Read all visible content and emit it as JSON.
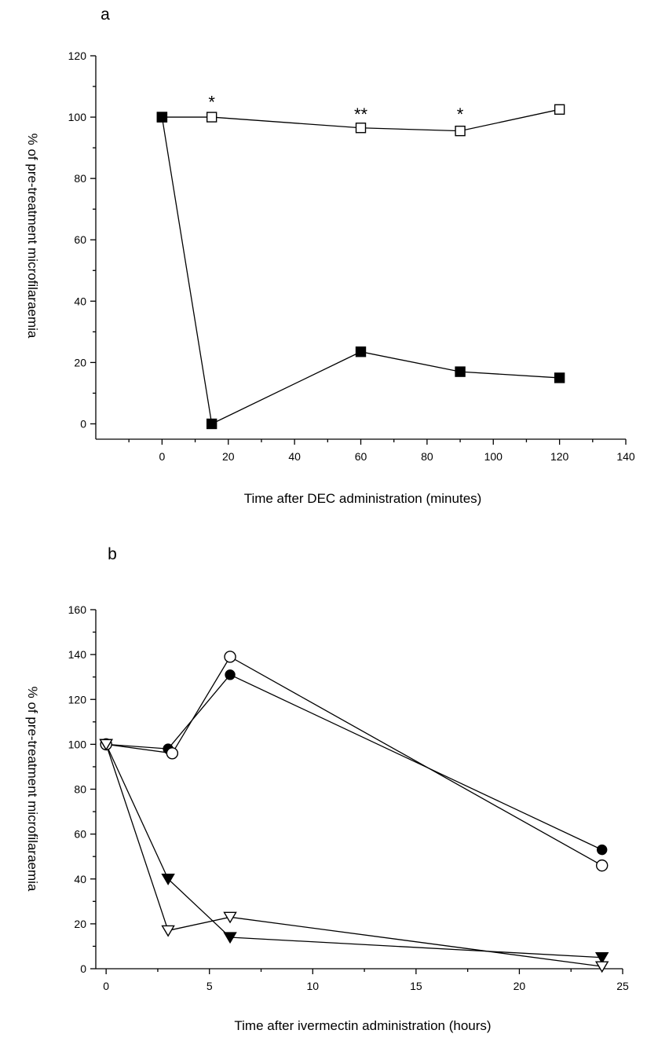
{
  "chart_data": [
    {
      "type": "line",
      "panel_label": "a",
      "xlabel": "Time after DEC administration (minutes)",
      "ylabel": "% of pre-treatment microfilaraemia",
      "xlim": [
        -20,
        140
      ],
      "ylim": [
        -5,
        120
      ],
      "xticks": [
        0,
        20,
        40,
        60,
        80,
        100,
        120,
        140
      ],
      "yticks": [
        0,
        20,
        40,
        60,
        80,
        100,
        120
      ],
      "grid": false,
      "series": [
        {
          "marker": "square-open",
          "points": [
            [
              0,
              100
            ],
            [
              15,
              100
            ],
            [
              60,
              96.5
            ],
            [
              90,
              95.5
            ],
            [
              120,
              102.5
            ]
          ]
        },
        {
          "marker": "square-filled",
          "points": [
            [
              0,
              100
            ],
            [
              15,
              0
            ],
            [
              60,
              23.5
            ],
            [
              90,
              17
            ],
            [
              120,
              15
            ]
          ]
        }
      ],
      "annotations": [
        {
          "text": "*",
          "x": 15,
          "y": 105
        },
        {
          "text": "**",
          "x": 60,
          "y": 101
        },
        {
          "text": "*",
          "x": 90,
          "y": 101
        }
      ]
    },
    {
      "type": "line",
      "panel_label": "b",
      "xlabel": "Time after ivermectin administration (hours)",
      "ylabel": "% of pre-treatment microfilaraemia",
      "xlim": [
        -0.5,
        25
      ],
      "ylim": [
        0,
        160
      ],
      "xticks": [
        0,
        5,
        10,
        15,
        20,
        25
      ],
      "yticks": [
        0,
        20,
        40,
        60,
        80,
        100,
        120,
        140,
        160
      ],
      "grid": false,
      "series": [
        {
          "marker": "circle-filled",
          "points": [
            [
              0,
              100
            ],
            [
              3,
              98
            ],
            [
              6,
              131
            ],
            [
              24,
              53
            ]
          ]
        },
        {
          "marker": "circle-open",
          "points": [
            [
              0,
              100
            ],
            [
              3.2,
              96
            ],
            [
              6,
              139
            ],
            [
              24,
              46
            ]
          ]
        },
        {
          "marker": "triangle-down-filled",
          "points": [
            [
              0,
              100
            ],
            [
              3,
              40
            ],
            [
              6,
              14
            ],
            [
              24,
              5
            ]
          ]
        },
        {
          "marker": "triangle-down-open",
          "points": [
            [
              0,
              100
            ],
            [
              3,
              17
            ],
            [
              6,
              23
            ],
            [
              24,
              1
            ]
          ]
        }
      ],
      "annotations": []
    }
  ]
}
